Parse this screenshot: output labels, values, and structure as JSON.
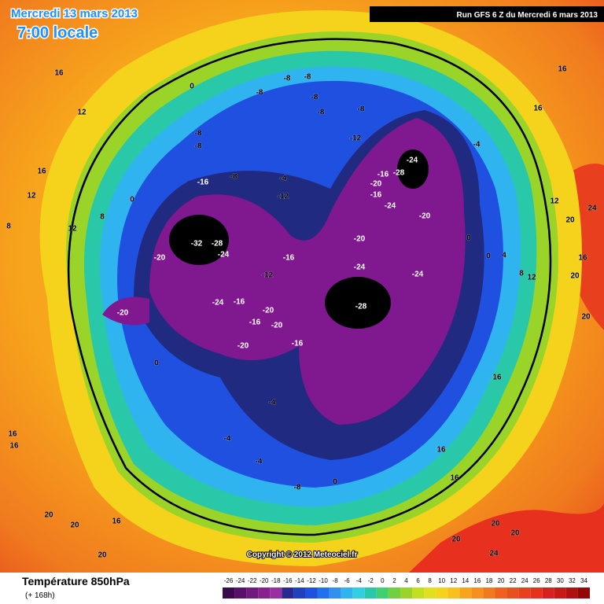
{
  "header": {
    "date": "Mercredi 13 mars 2013",
    "time": "7:00 locale",
    "run": "Run GFS 6 Z du Mercredi 6 mars 2013"
  },
  "copyright": "Copyright © 2012 Meteociel.fr",
  "footer": {
    "title": "Température 850hPa",
    "subtitle": "(+ 168h)"
  },
  "scale": {
    "values": [
      -26,
      -24,
      -22,
      -20,
      -18,
      -16,
      -14,
      -12,
      -10,
      -8,
      -6,
      -4,
      -2,
      0,
      2,
      4,
      6,
      8,
      10,
      12,
      14,
      16,
      18,
      20,
      22,
      24,
      26,
      28,
      30,
      32,
      34
    ],
    "colors": [
      "#3a0a4a",
      "#5a0f6a",
      "#701a80",
      "#882090",
      "#9a30a0",
      "#282a90",
      "#2040c0",
      "#2050e0",
      "#2070f0",
      "#3090f0",
      "#30b4f0",
      "#30d0e0",
      "#28c8a8",
      "#40d070",
      "#70d040",
      "#9ad428",
      "#c0e020",
      "#e0e020",
      "#f5d21c",
      "#f8c01c",
      "#f7a51c",
      "#f5901c",
      "#f07a1e",
      "#f0601e",
      "#e8501e",
      "#e8401e",
      "#e8301e",
      "#d82020",
      "#c81818",
      "#b01010",
      "#900808"
    ]
  },
  "map": {
    "labels": [
      -32,
      -28,
      -24,
      -20,
      -16,
      -16,
      -12,
      -20,
      -24,
      -16,
      -20,
      -16,
      -20,
      -20,
      -16,
      -28,
      -24,
      -24,
      -20,
      -20,
      -24,
      -16,
      -20,
      -16,
      -28,
      -24,
      -8,
      -8,
      -12,
      -8,
      -8,
      -8,
      0,
      -8,
      -8,
      -4,
      -4,
      -12,
      -8,
      -8,
      -4,
      -4,
      -4,
      -8,
      0,
      0,
      0,
      0,
      4,
      8,
      12,
      16,
      20,
      20,
      24,
      20,
      16,
      16,
      12,
      12,
      16,
      16,
      12,
      8,
      12,
      8,
      0,
      16,
      16,
      20,
      20,
      16,
      20,
      16,
      16,
      20,
      20,
      20,
      24,
      16
    ]
  }
}
